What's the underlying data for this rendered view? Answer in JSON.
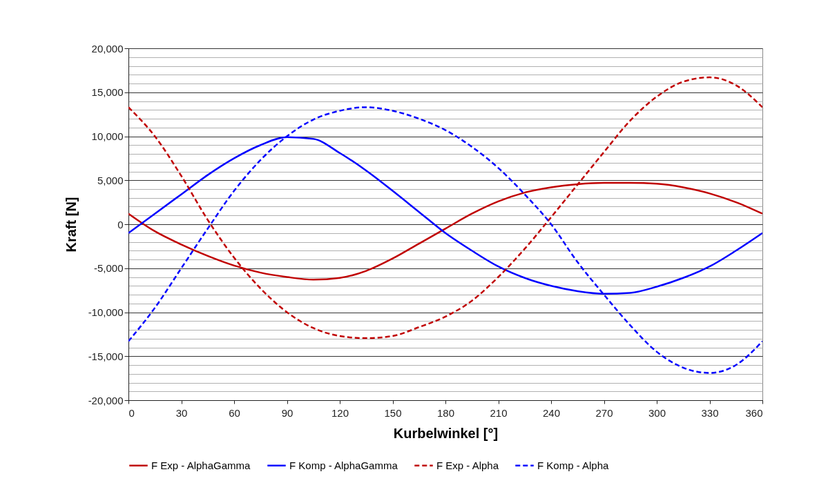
{
  "chart_data": {
    "type": "line",
    "xlabel": "Kurbelwinkel [°]",
    "ylabel": "Kraft [N]",
    "x": [
      0,
      15,
      30,
      45,
      60,
      75,
      90,
      105,
      120,
      135,
      150,
      165,
      180,
      195,
      210,
      225,
      240,
      255,
      270,
      285,
      300,
      315,
      330,
      345,
      360
    ],
    "series": [
      {
        "name": "F Exp - AlphaGamma",
        "color": "#c00000",
        "line_style": "solid",
        "values": [
          1200,
          -800,
          -2300,
          -3600,
          -4700,
          -5500,
          -6000,
          -6300,
          -6100,
          -5300,
          -3900,
          -2200,
          -500,
          1200,
          2600,
          3600,
          4200,
          4550,
          4700,
          4700,
          4600,
          4200,
          3500,
          2500,
          1200
        ]
      },
      {
        "name": "F Komp - AlphaGamma",
        "color": "#0000ff",
        "line_style": "solid",
        "values": [
          -1000,
          1200,
          3400,
          5600,
          7500,
          9000,
          9900,
          9700,
          8100,
          6100,
          3800,
          1400,
          -1000,
          -3000,
          -4800,
          -6100,
          -7000,
          -7600,
          -7900,
          -7800,
          -7100,
          -6100,
          -4800,
          -3000,
          -1000
        ]
      },
      {
        "name": "F Exp - Alpha",
        "color": "#c00000",
        "line_style": "dashed",
        "values": [
          13300,
          10000,
          5500,
          500,
          -3800,
          -7300,
          -10000,
          -11800,
          -12700,
          -12950,
          -12700,
          -11700,
          -10500,
          -8700,
          -6000,
          -2800,
          800,
          4500,
          8200,
          11800,
          14500,
          16200,
          16700,
          15800,
          13300
        ]
      },
      {
        "name": "F Komp - Alpha",
        "color": "#0000ff",
        "line_style": "dashed",
        "values": [
          -13300,
          -9500,
          -5000,
          -500,
          3800,
          7300,
          10000,
          11900,
          12900,
          13300,
          12900,
          12000,
          10700,
          8800,
          6400,
          3400,
          0,
          -4300,
          -8000,
          -11500,
          -14500,
          -16300,
          -16900,
          -16000,
          -13300
        ]
      }
    ],
    "xlim": [
      0,
      360
    ],
    "xticks": [
      0,
      30,
      60,
      90,
      120,
      150,
      180,
      210,
      240,
      270,
      300,
      330,
      360
    ],
    "ylim": [
      -20000,
      20000
    ],
    "yticks": [
      {
        "value": -20000,
        "label": "-20,000"
      },
      {
        "value": -19000,
        "label": null
      },
      {
        "value": -18000,
        "label": null
      },
      {
        "value": -17000,
        "label": null
      },
      {
        "value": -16000,
        "label": null
      },
      {
        "value": -15000,
        "label": "-15,000"
      },
      {
        "value": -14000,
        "label": null
      },
      {
        "value": -13000,
        "label": null
      },
      {
        "value": -12000,
        "label": null
      },
      {
        "value": -11000,
        "label": null
      },
      {
        "value": -10000,
        "label": "-10,000"
      },
      {
        "value": -9000,
        "label": null
      },
      {
        "value": -8000,
        "label": null
      },
      {
        "value": -7000,
        "label": null
      },
      {
        "value": -6000,
        "label": null
      },
      {
        "value": -5000,
        "label": "-5,000"
      },
      {
        "value": -4000,
        "label": null
      },
      {
        "value": -3000,
        "label": null
      },
      {
        "value": -2000,
        "label": null
      },
      {
        "value": -1000,
        "label": null
      },
      0,
      {
        "value": 1000,
        "label": null
      },
      {
        "value": 2000,
        "label": null
      },
      {
        "value": 3000,
        "label": null
      },
      {
        "value": 4000,
        "label": null
      },
      {
        "value": 5000,
        "label": "5,000"
      },
      {
        "value": 6000,
        "label": null
      },
      {
        "value": 7000,
        "label": null
      },
      {
        "value": 8000,
        "label": null
      },
      {
        "value": 9000,
        "label": null
      },
      {
        "value": 10000,
        "label": "10,000"
      },
      {
        "value": 11000,
        "label": null
      },
      {
        "value": 12000,
        "label": null
      },
      {
        "value": 13000,
        "label": null
      },
      {
        "value": 14000,
        "label": null
      },
      {
        "value": 15000,
        "label": "15,000"
      },
      {
        "value": 16000,
        "label": null
      },
      {
        "value": 17000,
        "label": null
      },
      {
        "value": 18000,
        "label": null
      },
      {
        "value": 19000,
        "label": null
      },
      {
        "value": 20000,
        "label": "20,000"
      }
    ],
    "grid": "y",
    "legend": "bottom",
    "marker": "none"
  }
}
